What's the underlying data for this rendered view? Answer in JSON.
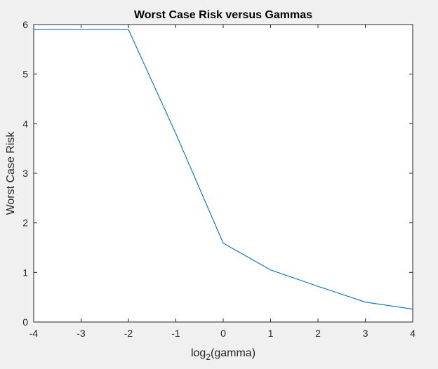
{
  "chart_data": {
    "type": "line",
    "title": "Worst Case Risk versus Gammas",
    "xlabel_base": "log",
    "xlabel_sub": "2",
    "xlabel_rest": "(gamma)",
    "ylabel": "Worst Case Risk",
    "xlim": [
      -4,
      4
    ],
    "ylim": [
      0,
      6
    ],
    "xticks": [
      -4,
      -3,
      -2,
      -1,
      0,
      1,
      2,
      3,
      4
    ],
    "yticks": [
      0,
      1,
      2,
      3,
      4,
      5,
      6
    ],
    "xtick_labels": [
      "-4",
      "-3",
      "-2",
      "-1",
      "0",
      "1",
      "2",
      "3",
      "4"
    ],
    "ytick_labels": [
      "0",
      "1",
      "2",
      "3",
      "4",
      "5",
      "6"
    ],
    "grid": false,
    "series": [
      {
        "x": [
          -4,
          -3,
          -2,
          -1,
          0,
          1,
          2,
          3,
          4
        ],
        "y": [
          5.9,
          5.9,
          5.9,
          3.8,
          1.59,
          1.05,
          0.72,
          0.4,
          0.26
        ],
        "color": "#0072bd"
      }
    ]
  }
}
